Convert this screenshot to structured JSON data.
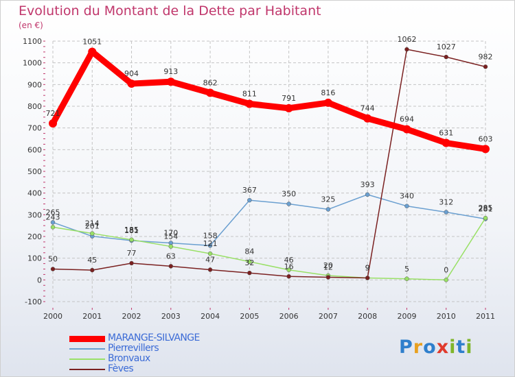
{
  "title": "Evolution du Montant de la Dette par Habitant",
  "subtitle": "(en €)",
  "logo": {
    "text": "Proxiti",
    "colors": [
      "#2f7fcc",
      "#e8a020",
      "#2f7fcc",
      "#e03a2c",
      "#7fb52a",
      "#2f7fcc",
      "#7fb52a"
    ]
  },
  "chart_data": {
    "type": "line",
    "title": "Evolution du Montant de la Dette par Habitant",
    "subtitle": "(en €)",
    "x": [
      2000,
      2001,
      2002,
      2003,
      2004,
      2005,
      2006,
      2007,
      2008,
      2009,
      2010,
      2011
    ],
    "ylim": [
      -100,
      1100
    ],
    "yticks": [
      -100,
      0,
      100,
      200,
      300,
      400,
      500,
      600,
      700,
      800,
      900,
      1000,
      1100
    ],
    "grid": true,
    "legend_position": "bottom-left",
    "series": [
      {
        "name": "MARANGE-SILVANGE",
        "color": "#ff0000",
        "values": [
          721,
          1051,
          904,
          913,
          862,
          811,
          791,
          816,
          744,
          694,
          631,
          603
        ],
        "labels": [
          "721",
          "1051",
          "904",
          "913",
          "862",
          "811",
          "791",
          "816",
          "744",
          "694",
          "631",
          "603"
        ]
      },
      {
        "name": "Pierrevillers",
        "color": "#6a9fd0",
        "values": [
          265,
          201,
          181,
          170,
          158,
          367,
          350,
          325,
          393,
          340,
          312,
          281
        ],
        "labels": [
          "265",
          "201",
          "181",
          "170",
          "158",
          "367",
          "350",
          "325",
          "393",
          "340",
          "312",
          "281"
        ]
      },
      {
        "name": "Bronvaux",
        "color": "#99e066",
        "values": [
          243,
          214,
          185,
          154,
          121,
          84,
          46,
          20,
          9,
          5,
          0,
          285
        ],
        "labels": [
          "243",
          "214",
          "185",
          "154",
          "121",
          "84",
          "46",
          "20",
          "9",
          "5",
          "0",
          "285"
        ]
      },
      {
        "name": "Fèves",
        "color": "#7a2020",
        "values": [
          50,
          45,
          77,
          63,
          47,
          32,
          16,
          12,
          9,
          1062,
          1027,
          982
        ],
        "labels": [
          "50",
          "45",
          "77",
          "63",
          "47",
          "32",
          "16",
          "12",
          "9",
          "1062",
          "1027",
          "982"
        ]
      }
    ]
  }
}
